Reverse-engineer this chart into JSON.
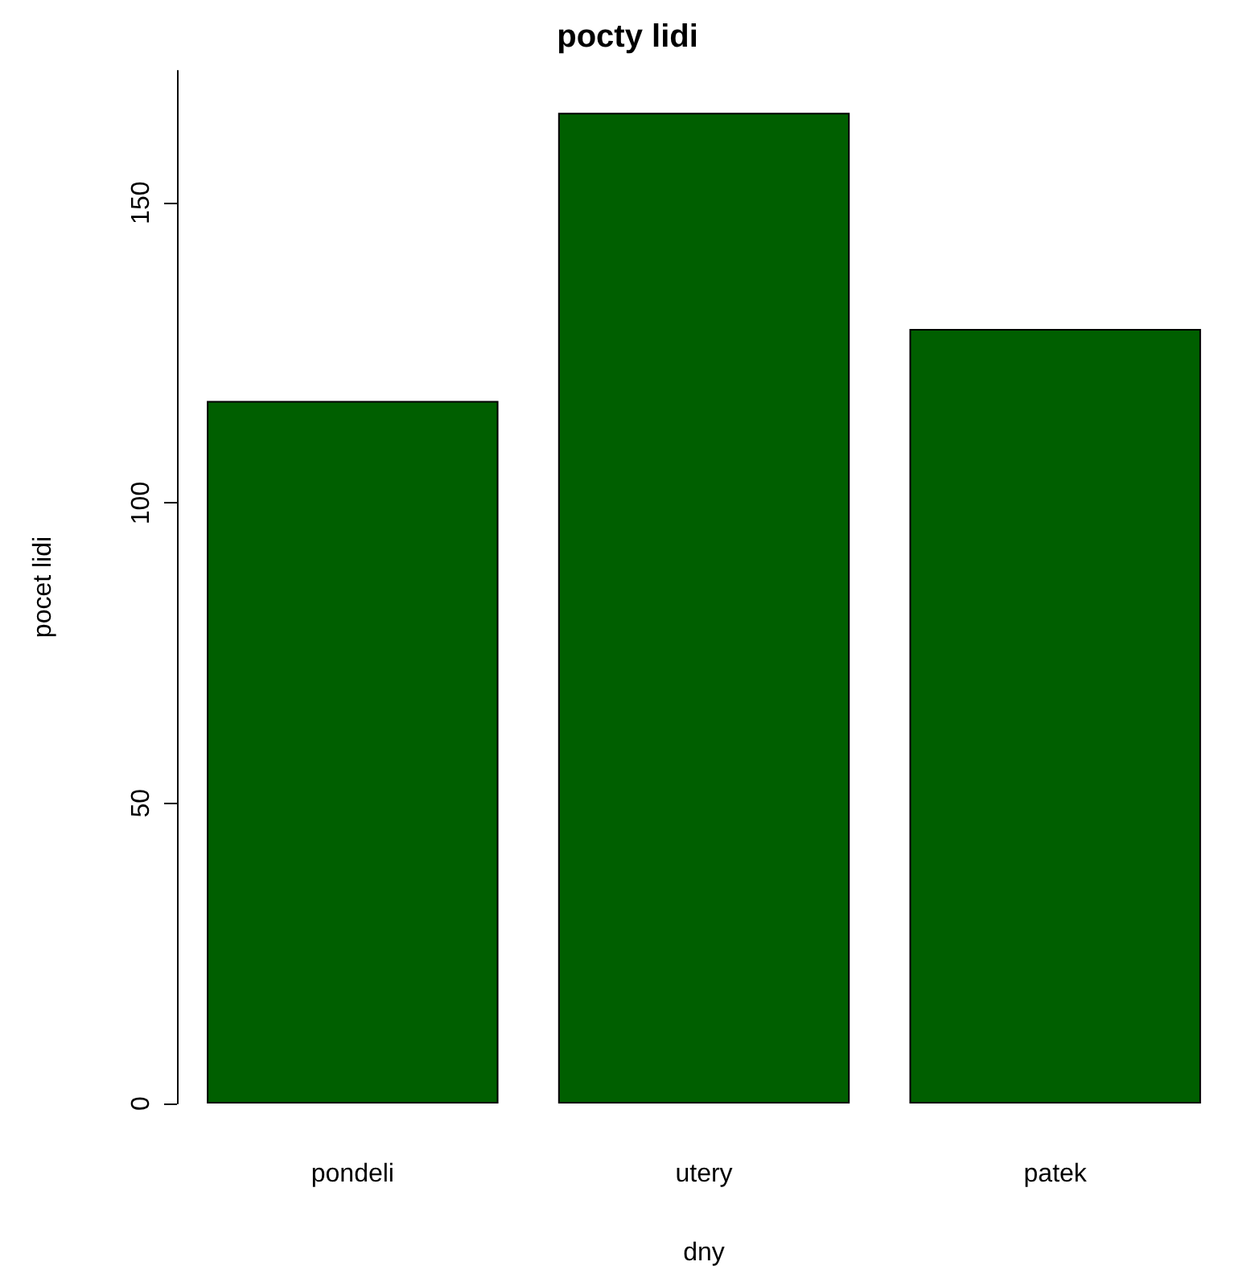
{
  "chart_data": {
    "type": "bar",
    "title": "pocty lidi",
    "xlabel": "dny",
    "ylabel": "pocet lidi",
    "categories": [
      "pondeli",
      "utery",
      "patek"
    ],
    "values": [
      117,
      165,
      129
    ],
    "color": "#005f00",
    "ylim": [
      0,
      172
    ],
    "yticks": [
      0,
      50,
      100,
      150
    ],
    "grid": false
  }
}
